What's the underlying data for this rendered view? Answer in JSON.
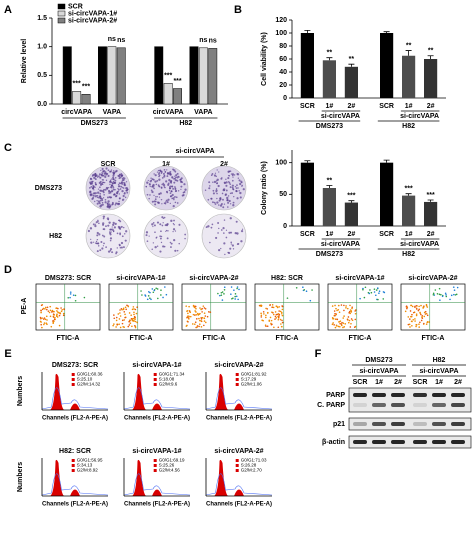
{
  "chart_data": [
    {
      "type": "bar",
      "panel": "A",
      "y_label": "Relative level",
      "groups": [
        {
          "label": "DMS273",
          "categories": [
            "circVAPA",
            "VAPA"
          ]
        },
        {
          "label": "H82",
          "categories": [
            "circVAPA",
            "VAPA"
          ]
        }
      ],
      "series": [
        {
          "name": "SCR",
          "color": "#000000",
          "values": [
            1.0,
            1.0,
            1.0,
            1.0
          ]
        },
        {
          "name": "si-circVAPA-1#",
          "color": "#d9d9d9",
          "values": [
            0.22,
            1.0,
            0.36,
            0.98
          ],
          "significance": [
            "***",
            "ns",
            "***",
            "ns"
          ]
        },
        {
          "name": "si-circVAPA-2#",
          "color": "#808080",
          "values": [
            0.17,
            0.98,
            0.27,
            0.97
          ],
          "significance": [
            "***",
            "ns",
            "***",
            "ns"
          ]
        }
      ],
      "ylim": [
        0,
        1.5
      ],
      "yticks": [
        {
          "value": 0,
          "label": "0.0"
        },
        0.5,
        {
          "value": 1,
          "label": "1.0"
        },
        1.5
      ]
    },
    {
      "type": "bar",
      "panel": "B",
      "y_label": "Cell viability (%)",
      "groups": [
        {
          "label": "DMS273",
          "sublabel": "si-circVAPA",
          "categories": [
            "SCR",
            "1#",
            "2#"
          ]
        },
        {
          "label": "H82",
          "sublabel": "si-circVAPA",
          "categories": [
            "SCR",
            "1#",
            "2#"
          ]
        }
      ],
      "values": [
        100,
        58,
        48,
        100,
        65,
        60
      ],
      "errors": [
        4,
        4,
        4,
        2,
        8,
        5
      ],
      "colors": [
        "#000000",
        "#4d4d4d",
        "#333333",
        "#000000",
        "#4d4d4d",
        "#333333"
      ],
      "significance": [
        null,
        "**",
        "**",
        null,
        "**",
        "**"
      ],
      "ylim": [
        0,
        120
      ],
      "yticks": [
        0,
        20,
        40,
        60,
        80,
        100,
        120
      ]
    },
    {
      "type": "bar",
      "panel": "C",
      "y_label": "Colony ratio (%)",
      "groups": [
        {
          "label": "DMS273",
          "sublabel": "si-circVAPA",
          "categories": [
            "SCR",
            "1#",
            "2#"
          ]
        },
        {
          "label": "H82",
          "sublabel": "si-circVAPA",
          "categories": [
            "SCR",
            "1#",
            "2#"
          ]
        }
      ],
      "values": [
        100,
        60,
        37,
        100,
        48,
        38
      ],
      "errors": [
        3,
        4,
        3,
        4,
        3,
        3
      ],
      "colors": [
        "#000000",
        "#4d4d4d",
        "#333333",
        "#000000",
        "#4d4d4d",
        "#333333"
      ],
      "significance": [
        null,
        "**",
        "***",
        null,
        "***",
        "***"
      ],
      "ylim": [
        0,
        120
      ],
      "yticks": [
        0,
        50,
        100
      ]
    }
  ],
  "colony": {
    "columns": [
      "SCR",
      "1#",
      "2#"
    ],
    "column_group": "si-circVAPA",
    "rows": [
      "DMS273",
      "H82"
    ]
  },
  "flow": {
    "panel": "D",
    "y_label": "PE-A",
    "x_label": "FTIC-A",
    "plots": [
      "DMS273: SCR",
      "si-circVAPA-1#",
      "si-circVAPA-2#",
      "H82: SCR",
      "si-circVAPA-1#",
      "si-circVAPA-2#"
    ]
  },
  "cell_cycle": {
    "panel": "E",
    "y_label": "Numbers",
    "x_label": "Channels (FL2-A-PE-A)",
    "plots": [
      {
        "title": "DMS273: SCR",
        "stats": [
          "G0/G1:60.36",
          "S:25.10",
          "G2/M:14.32"
        ]
      },
      {
        "title": "si-circVAPA-1#",
        "stats": [
          "G0/G1:71.34",
          "S:18.08",
          "G2/M:9.6"
        ]
      },
      {
        "title": "si-circVAPA-2#",
        "stats": [
          "G0/G1:81.92",
          "S:17.29",
          "G2/M:1.06"
        ]
      },
      {
        "title": "H82: SCR",
        "stats": [
          "G0/G1:56.95",
          "S:34.13",
          "G2/M:8.92"
        ]
      },
      {
        "title": "si-circVAPA-1#",
        "stats": [
          "G0/G1:69.19",
          "S:25.26",
          "G2/M:4.56"
        ]
      },
      {
        "title": "si-circVAPA-2#",
        "stats": [
          "G0/G1:71.03",
          "S:26.28",
          "G2/M:2.70"
        ]
      }
    ]
  },
  "western": {
    "panel": "F",
    "groups": [
      {
        "label": "DMS273",
        "sublabel": "si-circVAPA",
        "lanes": [
          "SCR",
          "1#",
          "2#"
        ]
      },
      {
        "label": "H82",
        "sublabel": "si-circVAPA",
        "lanes": [
          "SCR",
          "1#",
          "2#"
        ]
      }
    ],
    "rows": [
      "PARP",
      "C. PARP",
      "p21",
      "β-actin"
    ]
  }
}
